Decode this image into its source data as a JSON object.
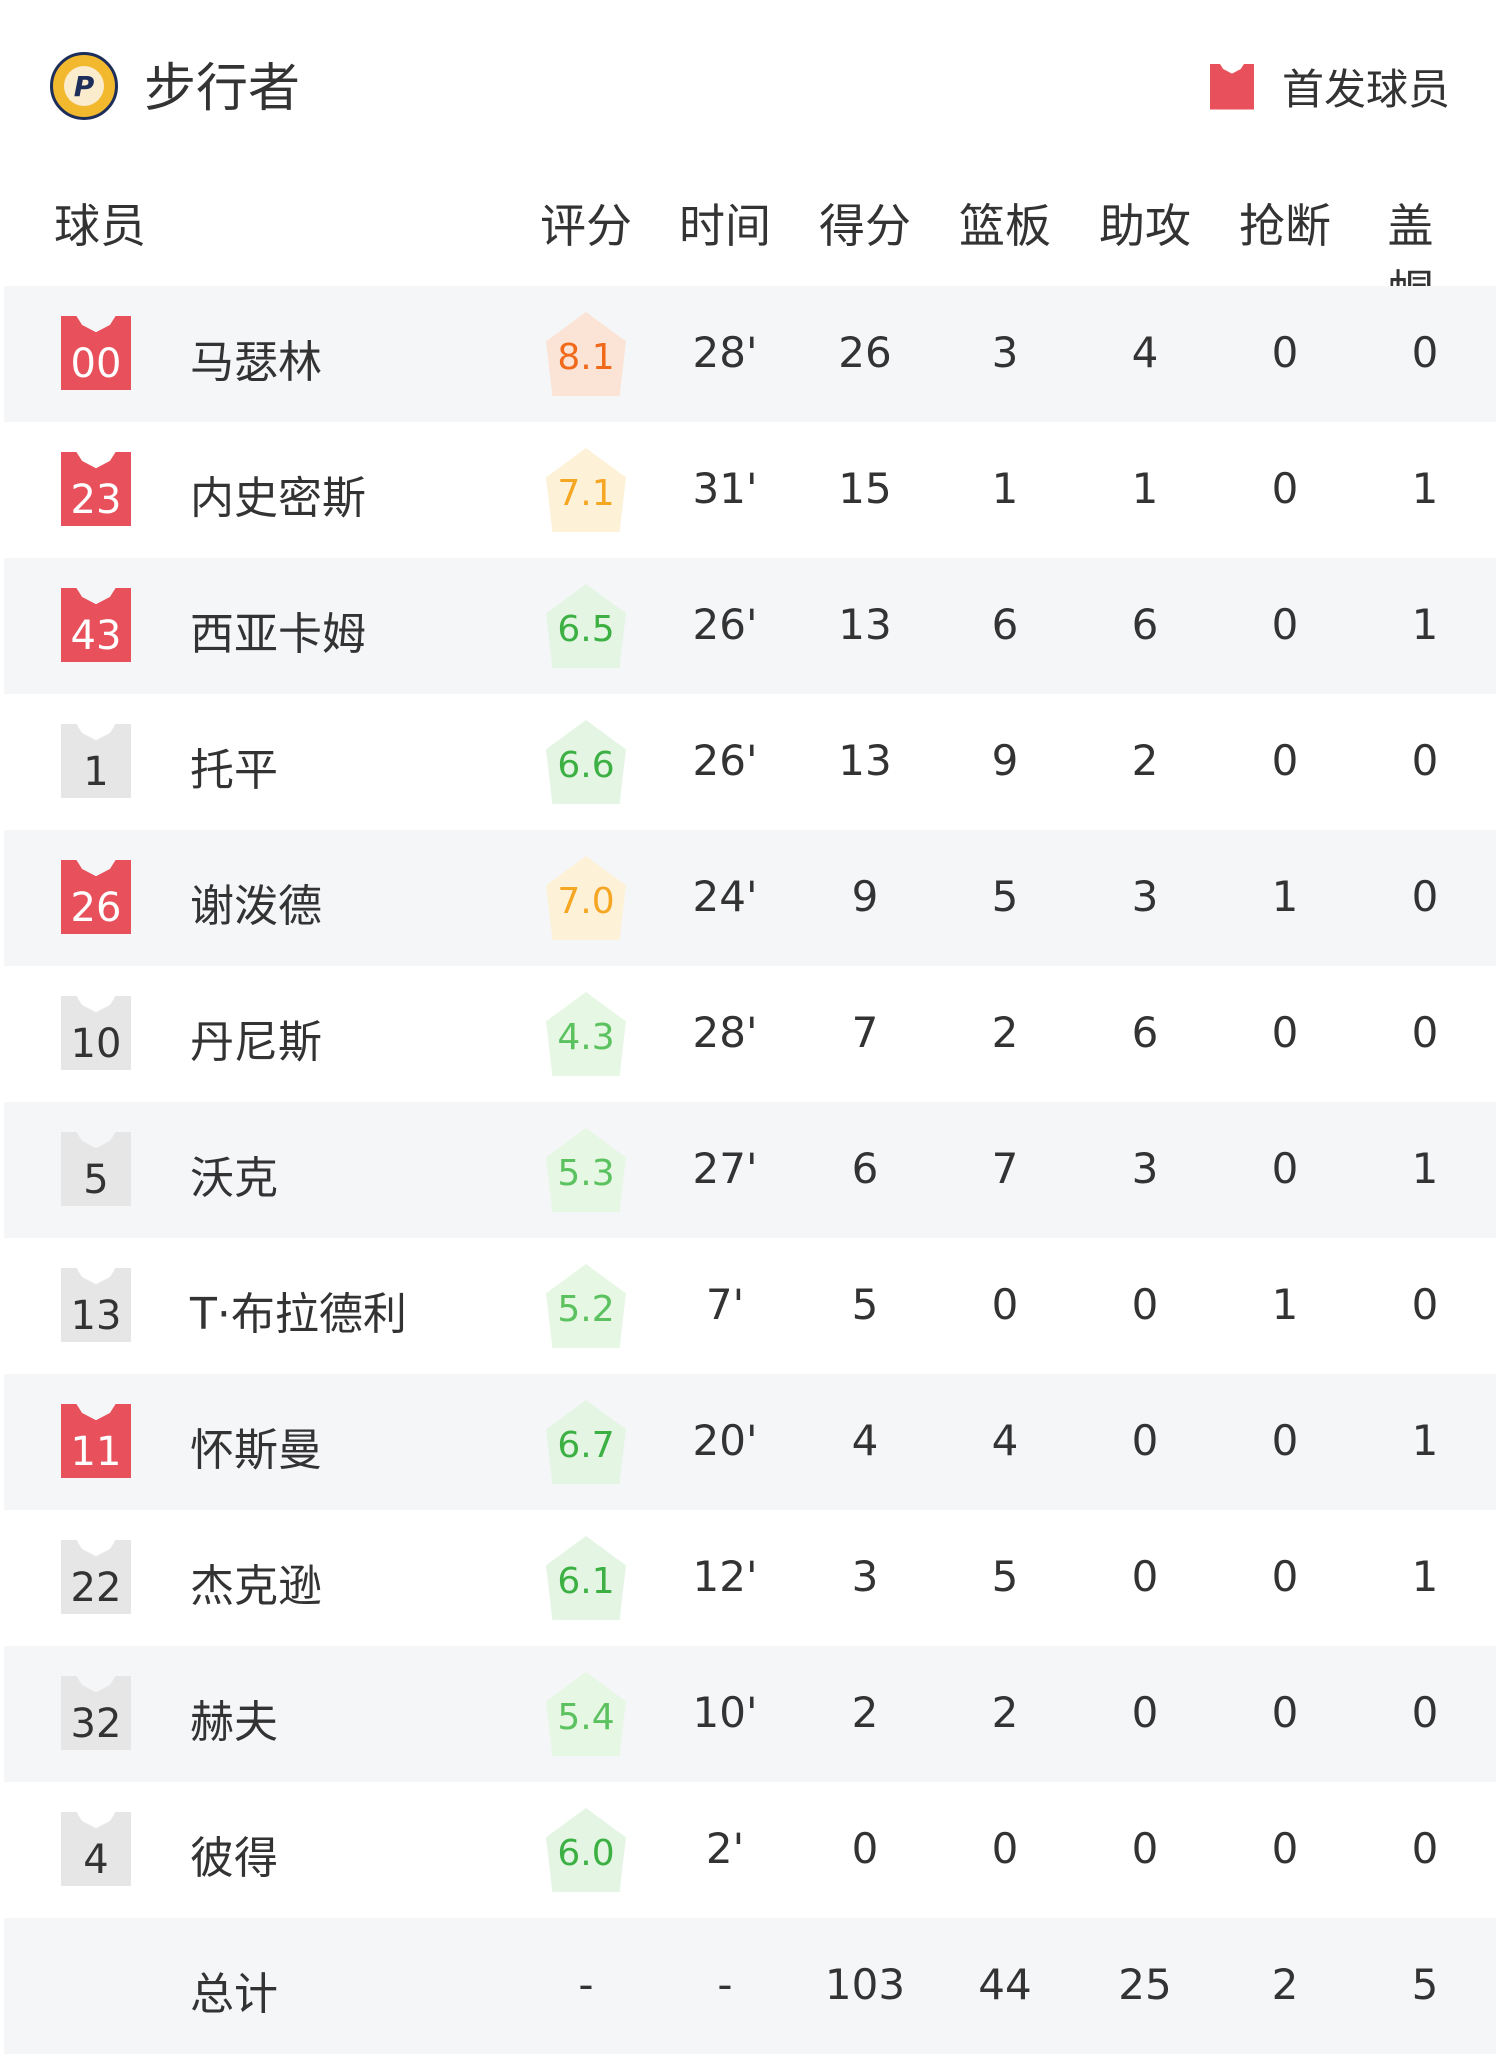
{
  "team": {
    "name": "步行者",
    "logo_text": "P"
  },
  "legend": {
    "label": "首发球员",
    "color": "#e8505b"
  },
  "headers": [
    "球员",
    "评分",
    "时间",
    "得分",
    "篮板",
    "助攻",
    "抢断",
    "盖帽"
  ],
  "players": [
    {
      "num": "00",
      "name": "马瑟林",
      "starter": true,
      "rating": "8.1",
      "min": "28'",
      "pts": "26",
      "reb": "3",
      "ast": "4",
      "stl": "0",
      "blk": "0"
    },
    {
      "num": "23",
      "name": "内史密斯",
      "starter": true,
      "rating": "7.1",
      "min": "31'",
      "pts": "15",
      "reb": "1",
      "ast": "1",
      "stl": "0",
      "blk": "1"
    },
    {
      "num": "43",
      "name": "西亚卡姆",
      "starter": true,
      "rating": "6.5",
      "min": "26'",
      "pts": "13",
      "reb": "6",
      "ast": "6",
      "stl": "0",
      "blk": "1"
    },
    {
      "num": "1",
      "name": "托平",
      "starter": false,
      "rating": "6.6",
      "min": "26'",
      "pts": "13",
      "reb": "9",
      "ast": "2",
      "stl": "0",
      "blk": "0"
    },
    {
      "num": "26",
      "name": "谢泼德",
      "starter": true,
      "rating": "7.0",
      "min": "24'",
      "pts": "9",
      "reb": "5",
      "ast": "3",
      "stl": "1",
      "blk": "0"
    },
    {
      "num": "10",
      "name": "丹尼斯",
      "starter": false,
      "rating": "4.3",
      "min": "28'",
      "pts": "7",
      "reb": "2",
      "ast": "6",
      "stl": "0",
      "blk": "0"
    },
    {
      "num": "5",
      "name": "沃克",
      "starter": false,
      "rating": "5.3",
      "min": "27'",
      "pts": "6",
      "reb": "7",
      "ast": "3",
      "stl": "0",
      "blk": "1"
    },
    {
      "num": "13",
      "name": "T·布拉德利",
      "starter": false,
      "rating": "5.2",
      "min": "7'",
      "pts": "5",
      "reb": "0",
      "ast": "0",
      "stl": "1",
      "blk": "0"
    },
    {
      "num": "11",
      "name": "怀斯曼",
      "starter": true,
      "rating": "6.7",
      "min": "20'",
      "pts": "4",
      "reb": "4",
      "ast": "0",
      "stl": "0",
      "blk": "1"
    },
    {
      "num": "22",
      "name": "杰克逊",
      "starter": false,
      "rating": "6.1",
      "min": "12'",
      "pts": "3",
      "reb": "5",
      "ast": "0",
      "stl": "0",
      "blk": "1"
    },
    {
      "num": "32",
      "name": "赫夫",
      "starter": false,
      "rating": "5.4",
      "min": "10'",
      "pts": "2",
      "reb": "2",
      "ast": "0",
      "stl": "0",
      "blk": "0"
    },
    {
      "num": "4",
      "name": "彼得",
      "starter": false,
      "rating": "6.0",
      "min": "2'",
      "pts": "0",
      "reb": "0",
      "ast": "0",
      "stl": "0",
      "blk": "0"
    }
  ],
  "total": {
    "label": "总计",
    "rating": "-",
    "min": "-",
    "pts": "103",
    "reb": "44",
    "ast": "25",
    "stl": "2",
    "blk": "5"
  }
}
